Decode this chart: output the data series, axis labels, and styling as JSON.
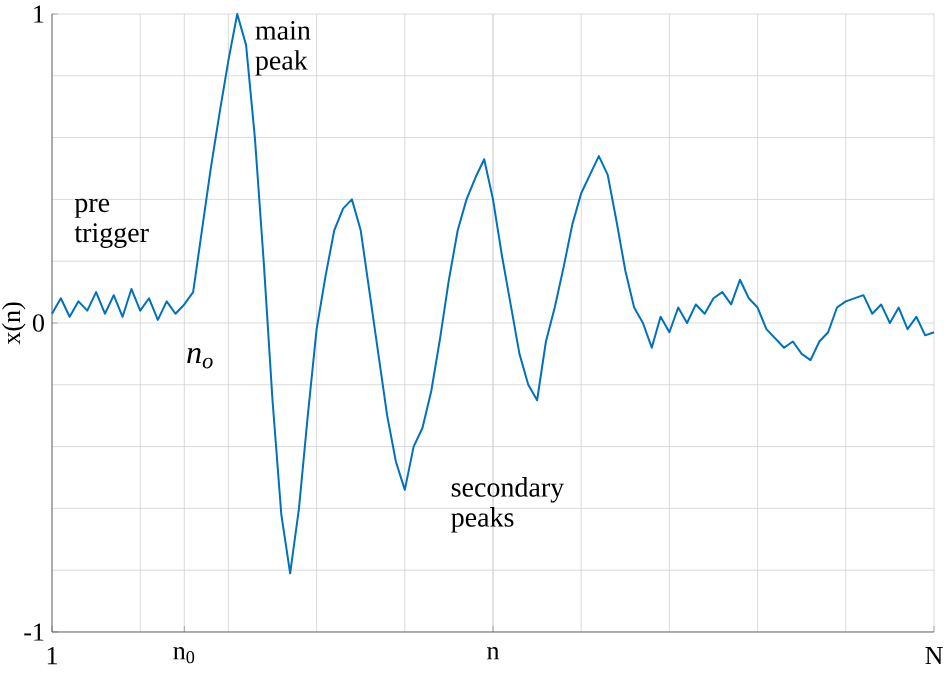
{
  "chart_data": {
    "type": "line",
    "ylabel": "x(n)",
    "categories": [
      "1",
      null,
      null,
      null,
      null,
      null,
      null,
      null,
      null,
      null,
      null,
      null,
      null,
      null,
      null,
      "n$_{0}$",
      null,
      null,
      null,
      null,
      null,
      null,
      null,
      null,
      null,
      null,
      null,
      null,
      null,
      null,
      null,
      null,
      null,
      null,
      null,
      null,
      null,
      null,
      null,
      null,
      null,
      null,
      null,
      null,
      null,
      null,
      null,
      null,
      null,
      null,
      "n",
      null,
      null,
      null,
      null,
      null,
      null,
      null,
      null,
      null,
      null,
      null,
      null,
      null,
      null,
      null,
      null,
      null,
      null,
      null,
      null,
      null,
      null,
      null,
      null,
      null,
      null,
      null,
      null,
      null,
      null,
      null,
      null,
      null,
      null,
      null,
      null,
      null,
      null,
      null,
      null,
      null,
      null,
      null,
      null,
      null,
      null,
      null,
      null,
      null,
      "N"
    ],
    "ylim": [
      -1,
      1
    ],
    "yticks": [
      -1,
      0,
      1
    ],
    "grid": true,
    "line_style": "solid",
    "marker": "none",
    "series": [
      {
        "color": "#0072bd",
        "values": [
          0.03,
          0.08,
          0.02,
          0.07,
          0.04,
          0.1,
          0.03,
          0.09,
          0.02,
          0.11,
          0.04,
          0.08,
          0.01,
          0.07,
          0.03,
          0.06,
          0.1,
          0.3,
          0.5,
          0.68,
          0.85,
          1.0,
          0.9,
          0.6,
          0.2,
          -0.25,
          -0.62,
          -0.81,
          -0.6,
          -0.3,
          -0.02,
          0.15,
          0.3,
          0.37,
          0.4,
          0.3,
          0.1,
          -0.1,
          -0.3,
          -0.45,
          -0.54,
          -0.4,
          -0.34,
          -0.22,
          -0.05,
          0.14,
          0.3,
          0.4,
          0.47,
          0.53,
          0.4,
          0.22,
          0.06,
          -0.1,
          -0.2,
          -0.25,
          -0.06,
          0.05,
          0.18,
          0.32,
          0.42,
          0.48,
          0.54,
          0.48,
          0.33,
          0.17,
          0.05,
          0.0,
          -0.08,
          0.02,
          -0.03,
          0.05,
          0.0,
          0.06,
          0.03,
          0.08,
          0.1,
          0.06,
          0.14,
          0.08,
          0.05,
          -0.02,
          -0.05,
          -0.08,
          -0.06,
          -0.1,
          -0.12,
          -0.06,
          -0.03,
          0.05,
          0.07,
          0.08,
          0.09,
          0.03,
          0.06,
          0.0,
          0.05,
          -0.02,
          0.02,
          -0.04,
          -0.03
        ]
      }
    ],
    "annotations": [
      "main peak",
      "pre trigger",
      "n$_{o}$",
      "secondary peaks"
    ]
  }
}
